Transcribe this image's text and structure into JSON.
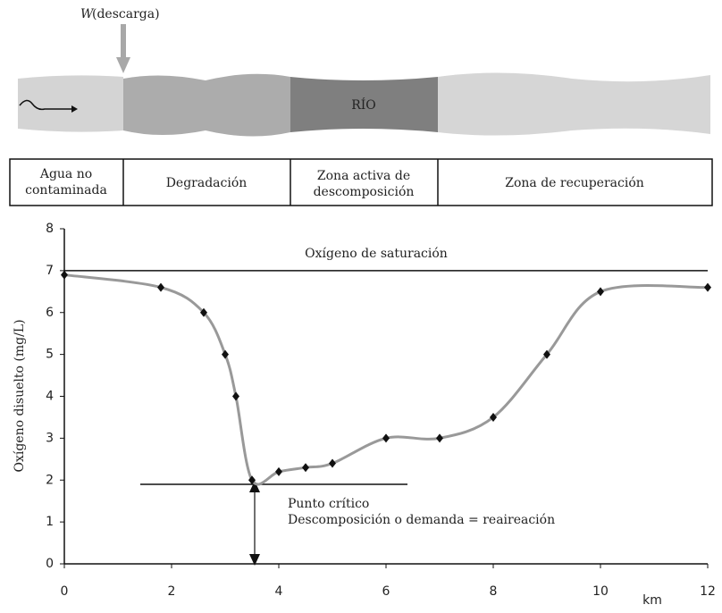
{
  "diagram": {
    "discharge_symbol": "W",
    "discharge_label": "(descarga)",
    "river_label": "RÍO"
  },
  "zones": [
    [
      "Agua no",
      "contaminada"
    ],
    [
      "Degradación"
    ],
    [
      "Zona activa de",
      "descomposición"
    ],
    [
      "Zona de recuperación"
    ]
  ],
  "chart_data": {
    "type": "line",
    "x": [
      0,
      1.8,
      2.6,
      3.0,
      3.2,
      3.5,
      4.0,
      4.5,
      5.0,
      6.0,
      7.0,
      8.0,
      9.0,
      10.0,
      12.0
    ],
    "values": [
      6.9,
      6.6,
      6.0,
      5.0,
      4.0,
      2.0,
      2.2,
      2.3,
      2.4,
      3.0,
      3.0,
      3.5,
      5.0,
      6.5,
      6.6
    ],
    "color": "#999999",
    "marker_color": "#111111",
    "xlabel": "km",
    "ylabel": "Oxígeno disuelto (mg/L)",
    "xlim": [
      0,
      12
    ],
    "xticks": [
      0,
      2,
      4,
      6,
      8,
      10,
      12
    ],
    "ylim": [
      0,
      8
    ],
    "yticks": [
      0,
      1,
      2,
      3,
      4,
      5,
      6,
      7,
      8
    ],
    "saturation": {
      "label": "Oxígeno de saturación",
      "value": 7
    },
    "annotations": [
      "Punto crítico",
      "Descomposición o demanda = reaireación"
    ]
  }
}
